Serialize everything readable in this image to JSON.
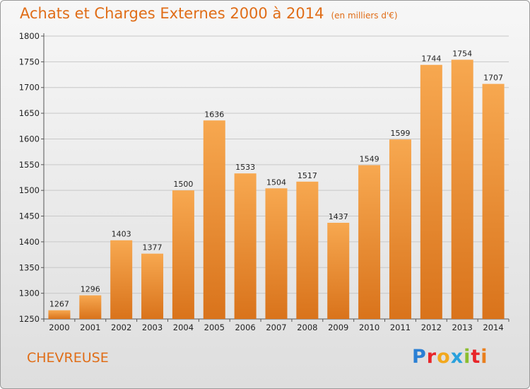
{
  "header": {
    "title": "Achats et Charges Externes 2000 à 2014",
    "subtitle": "(en milliers d'€)"
  },
  "footer": {
    "location": "CHEVREUSE",
    "logo_letters": [
      "P",
      "r",
      "o",
      "x",
      "i",
      "t",
      "i"
    ]
  },
  "colors": {
    "bar_light": "#f7a850",
    "bar_dark": "#d9731b",
    "title": "#e06d17",
    "grid": "#c8c8c8"
  },
  "chart_data": {
    "type": "bar",
    "title": "Achats et Charges Externes 2000 à 2014",
    "subtitle": "(en milliers d'€)",
    "categories": [
      "2000",
      "2001",
      "2002",
      "2003",
      "2004",
      "2005",
      "2006",
      "2007",
      "2008",
      "2009",
      "2010",
      "2011",
      "2012",
      "2013",
      "2014"
    ],
    "values": [
      1267,
      1296,
      1403,
      1377,
      1500,
      1636,
      1533,
      1504,
      1517,
      1437,
      1549,
      1599,
      1744,
      1754,
      1707
    ],
    "ylim": [
      1250,
      1800
    ],
    "yticks": [
      1250,
      1300,
      1350,
      1400,
      1450,
      1500,
      1550,
      1600,
      1650,
      1700,
      1750,
      1800
    ],
    "grid": true,
    "data_labels": true
  }
}
